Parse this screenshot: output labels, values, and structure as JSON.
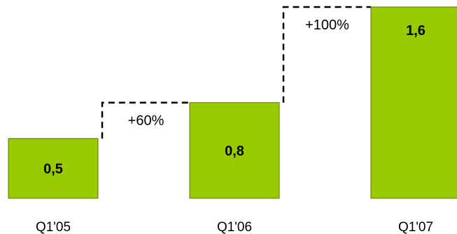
{
  "chart_data": {
    "type": "bar",
    "categories": [
      "Q1'05",
      "Q1'06",
      "Q1'07"
    ],
    "values": [
      0.5,
      0.8,
      1.6
    ],
    "value_labels": [
      "0,5",
      "0,8",
      "1,6"
    ],
    "growth_annotations": [
      {
        "from": 0,
        "to": 1,
        "label": "+60%"
      },
      {
        "from": 1,
        "to": 2,
        "label": "+100%"
      }
    ],
    "title": "",
    "xlabel": "",
    "ylabel": "",
    "ylim": [
      0,
      1.6
    ],
    "grid": false,
    "legend": "none",
    "colors": {
      "bar": "#99cc00",
      "bar_border": "#5a7a00",
      "connector": "#000000"
    }
  }
}
